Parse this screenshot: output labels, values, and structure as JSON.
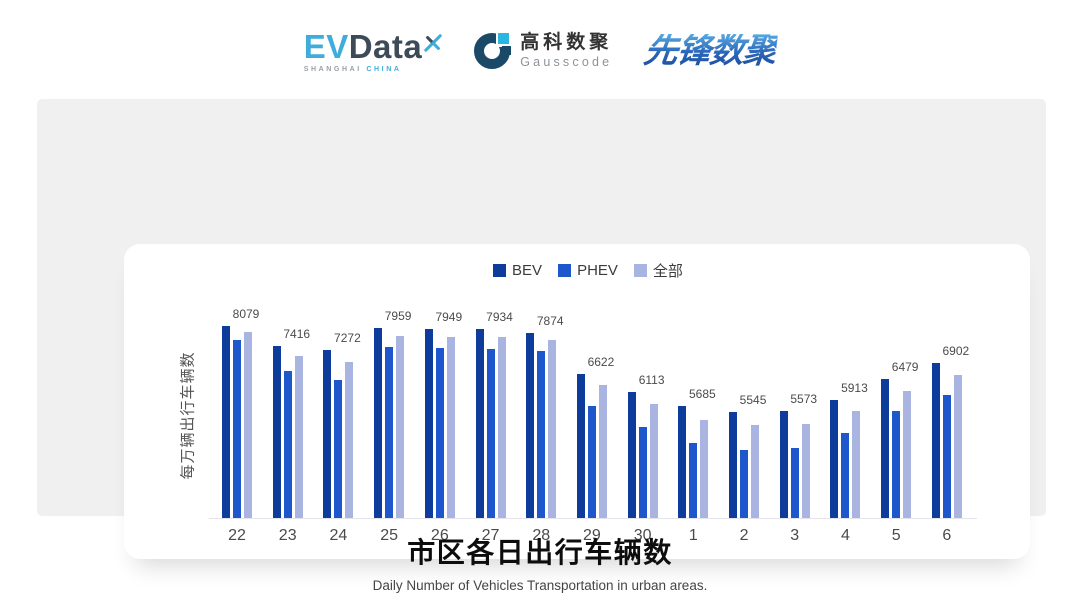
{
  "header": {
    "evdata": {
      "ev": "EV",
      "data": "Data",
      "sub_left": "SHANGHAI",
      "sub_right": "CHINA"
    },
    "gausscode": {
      "cn": "高科数聚",
      "en": "Gausscode"
    },
    "pioneer": {
      "text": "先锋数聚"
    }
  },
  "colors": {
    "panel_bg": "#f0f0f1",
    "bev": "#0e3c9a",
    "phev": "#1e56cb",
    "all": "#a9b4e1",
    "evdata_cyan": "#3fadda",
    "evdata_dark": "#3d4a57",
    "gauss_navy": "#1b4968",
    "gauss_cyan": "#29b6e0",
    "pioneer_blue": "#2a66b8"
  },
  "chart_data": {
    "type": "bar",
    "title": "市区各日出行车辆数",
    "subtitle": "Daily Number of Vehicles Transportation in urban areas.",
    "ylabel": "每万辆出行车辆数",
    "xlabel": "",
    "ylim": [
      3000,
      8600
    ],
    "grid": false,
    "legend_position": "top-center",
    "categories": [
      "22",
      "23",
      "24",
      "25",
      "26",
      "27",
      "28",
      "29",
      "30",
      "1",
      "2",
      "3",
      "4",
      "5",
      "6"
    ],
    "series": [
      {
        "key": "bev",
        "name": "BEV",
        "color": "#0e3c9a",
        "values": [
          8240,
          7700,
          7580,
          8180,
          8150,
          8160,
          8060,
          6920,
          6430,
          6070,
          5900,
          5930,
          6230,
          6800,
          7230
        ]
      },
      {
        "key": "phev",
        "name": "PHEV",
        "color": "#1e56cb",
        "values": [
          7860,
          7010,
          6780,
          7660,
          7650,
          7620,
          7570,
          6060,
          5480,
          5050,
          4860,
          4910,
          5320,
          5920,
          6360
        ]
      },
      {
        "key": "all",
        "name": "全部",
        "color": "#a9b4e1",
        "labeled": true,
        "values": [
          8079,
          7416,
          7272,
          7959,
          7949,
          7934,
          7874,
          6622,
          6113,
          5685,
          5545,
          5573,
          5913,
          6479,
          6902
        ]
      }
    ]
  }
}
